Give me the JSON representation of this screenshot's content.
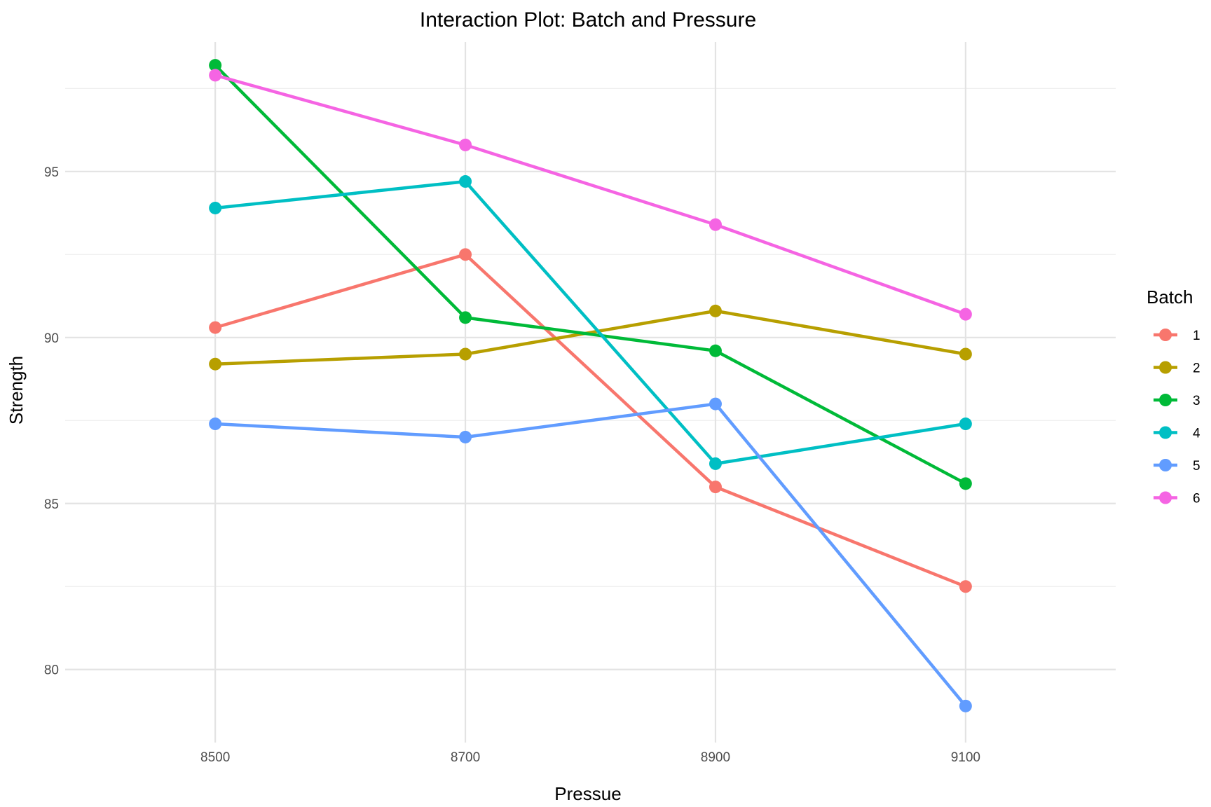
{
  "chart_data": {
    "type": "line",
    "title": "Interaction Plot: Batch and Pressure",
    "xlabel": "Pressue",
    "ylabel": "Strength",
    "x": [
      8500,
      8700,
      8900,
      9100
    ],
    "x_tick_labels": [
      "8500",
      "8700",
      "8900",
      "9100"
    ],
    "y_ticks": [
      80,
      85,
      90,
      95
    ],
    "y_tick_labels": [
      "80",
      "85",
      "90",
      "95"
    ],
    "xlim": [
      8380,
      9220
    ],
    "ylim": [
      77.8,
      98.9
    ],
    "grid": true,
    "legend": {
      "title": "Batch",
      "position": "right"
    },
    "series": [
      {
        "name": "1",
        "color": "#F8766D",
        "values": [
          90.3,
          92.5,
          85.5,
          82.5
        ]
      },
      {
        "name": "2",
        "color": "#B79F00",
        "values": [
          89.2,
          89.5,
          90.8,
          89.5
        ]
      },
      {
        "name": "3",
        "color": "#00BA38",
        "values": [
          98.2,
          90.6,
          89.6,
          85.6
        ]
      },
      {
        "name": "4",
        "color": "#00BFC4",
        "values": [
          93.9,
          94.7,
          86.2,
          87.4
        ]
      },
      {
        "name": "5",
        "color": "#619CFF",
        "values": [
          87.4,
          87.0,
          88.0,
          78.9
        ]
      },
      {
        "name": "6",
        "color": "#F564E3",
        "values": [
          97.9,
          95.8,
          93.4,
          90.7
        ]
      }
    ]
  }
}
